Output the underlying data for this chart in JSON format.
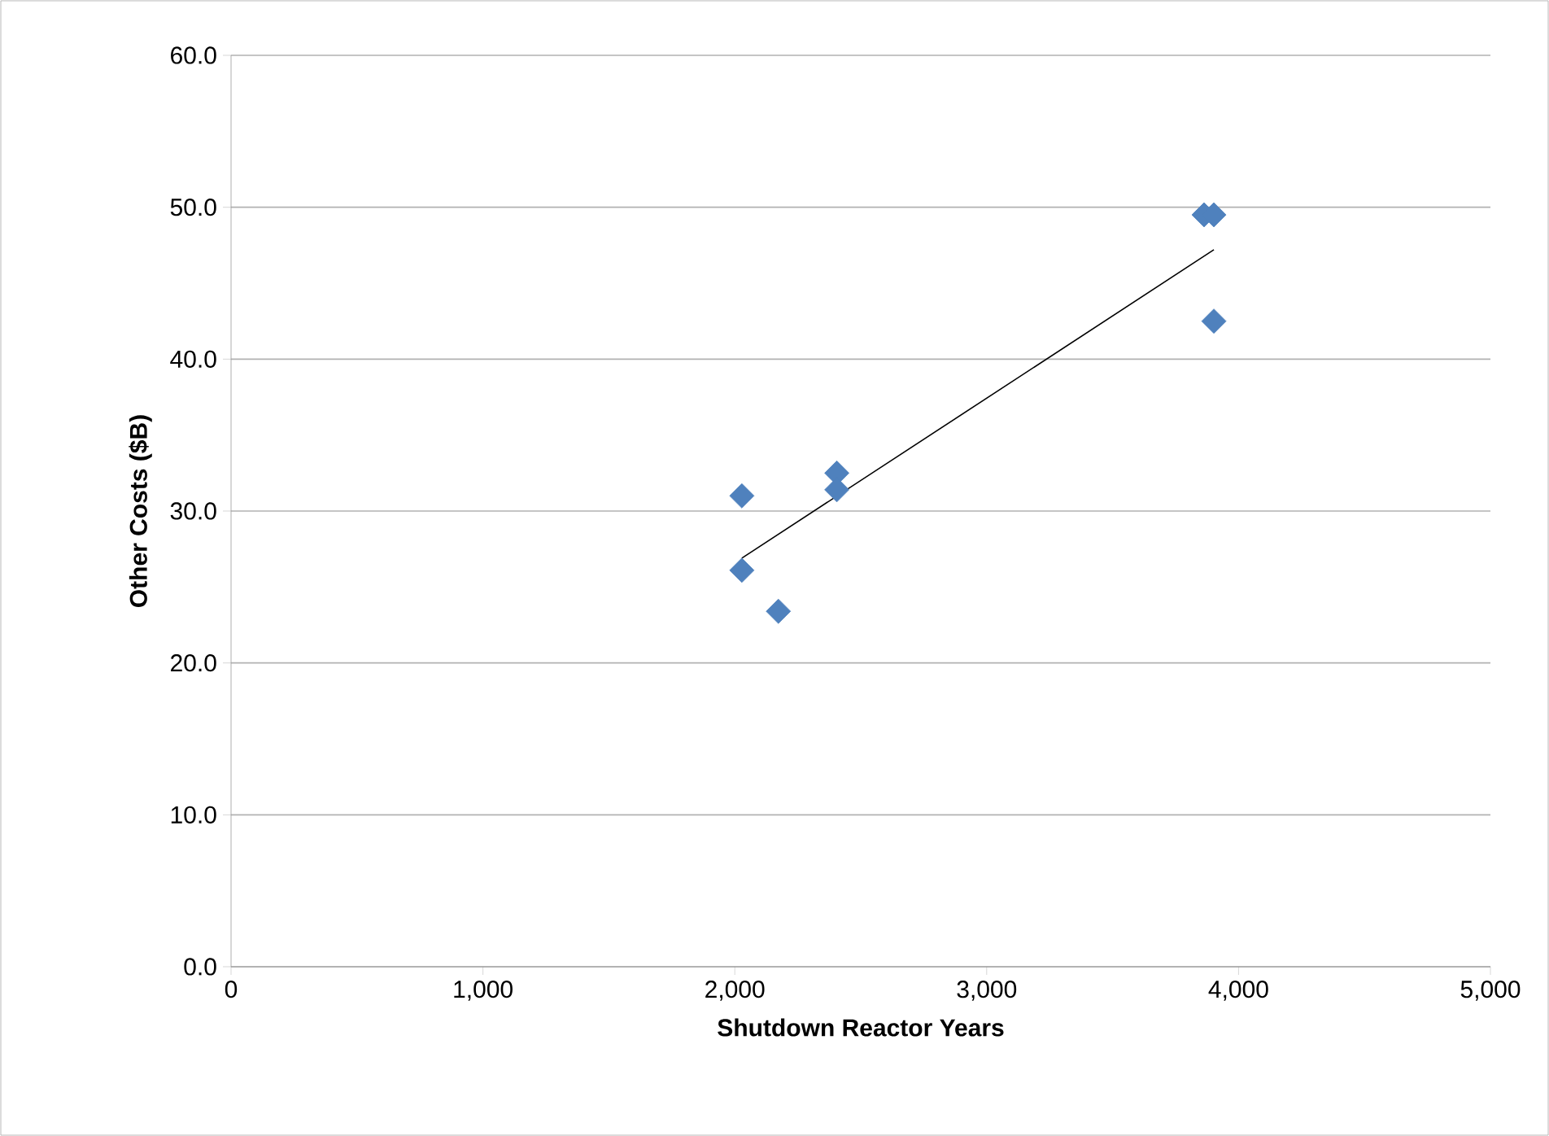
{
  "chart_data": {
    "type": "scatter",
    "xlabel": "Shutdown Reactor Years",
    "ylabel": "Other Costs ($B)",
    "xlim": [
      0,
      5000
    ],
    "ylim": [
      0,
      60
    ],
    "xticks": [
      {
        "value": 0,
        "label": "0"
      },
      {
        "value": 1000,
        "label": "1,000"
      },
      {
        "value": 2000,
        "label": "2,000"
      },
      {
        "value": 3000,
        "label": "3,000"
      },
      {
        "value": 4000,
        "label": "4,000"
      },
      {
        "value": 5000,
        "label": "5,000"
      }
    ],
    "yticks": [
      {
        "value": 0,
        "label": "0.0"
      },
      {
        "value": 10,
        "label": "10.0"
      },
      {
        "value": 20,
        "label": "20.0"
      },
      {
        "value": 30,
        "label": "30.0"
      },
      {
        "value": 40,
        "label": "40.0"
      },
      {
        "value": 50,
        "label": "50.0"
      },
      {
        "value": 60,
        "label": "60.0"
      }
    ],
    "grid": "y",
    "series": [
      {
        "marker": "diamond",
        "color": "#4f81bd",
        "x": [
          2028,
          2028,
          2173,
          2405,
          2405,
          3863,
          3902,
          3902
        ],
        "values": [
          31.0,
          26.1,
          23.4,
          32.5,
          31.4,
          49.5,
          49.5,
          42.5
        ]
      },
      {
        "type": "line",
        "marker": "none",
        "line_style": "solid",
        "color": "#000000",
        "x": [
          2028,
          3902
        ],
        "values": [
          26.9,
          47.2
        ]
      }
    ]
  }
}
